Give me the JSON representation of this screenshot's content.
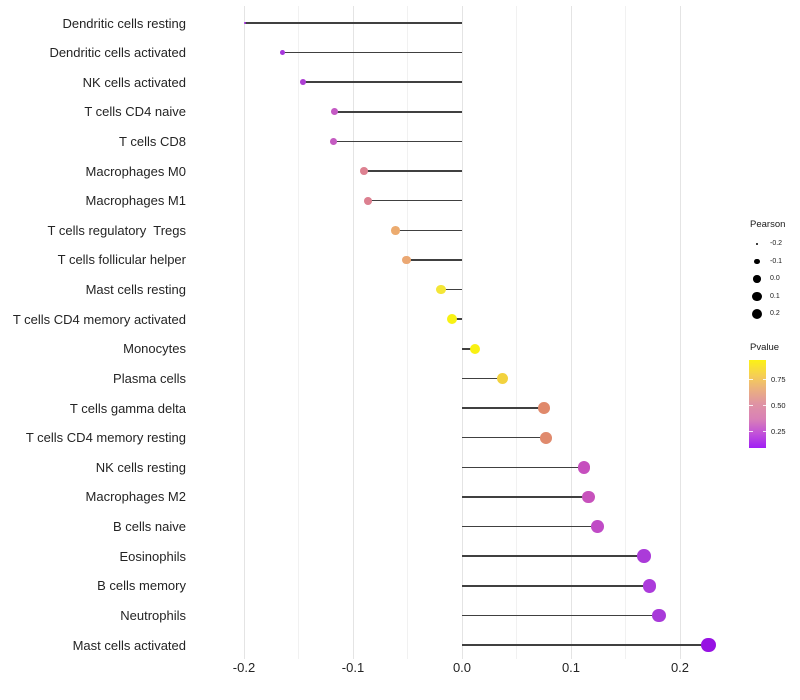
{
  "chart_data": {
    "type": "lollipop",
    "title": "",
    "xlabel": "",
    "ylabel": "",
    "grid": true,
    "background": "#ffffff",
    "line_color": "#404040",
    "x_axis": {
      "range": [
        -0.25,
        0.233
      ],
      "major_ticks": [
        {
          "value": -0.2,
          "label": "-0.2"
        },
        {
          "value": -0.1,
          "label": "-0.1"
        },
        {
          "value": 0.0,
          "label": "0.0"
        },
        {
          "value": 0.1,
          "label": "0.1"
        },
        {
          "value": 0.2,
          "label": "0.2"
        }
      ],
      "minor_ticks": [
        -0.15,
        -0.05,
        0.05,
        0.15
      ]
    },
    "points": [
      {
        "label": "Dendritic cells resting",
        "pearson": -0.199,
        "color": "#A228DE"
      },
      {
        "label": "Dendritic cells activated",
        "pearson": -0.165,
        "color": "#A737DC"
      },
      {
        "label": "NK cells activated",
        "pearson": -0.146,
        "color": "#AD3FD3"
      },
      {
        "label": "T cells CD4 naive",
        "pearson": -0.117,
        "color": "#C45AC4"
      },
      {
        "label": "T cells CD8",
        "pearson": -0.118,
        "color": "#C55CC2"
      },
      {
        "label": "Macrophages M0",
        "pearson": -0.09,
        "color": "#DD8191"
      },
      {
        "label": "Macrophages M1",
        "pearson": -0.086,
        "color": "#DC8090"
      },
      {
        "label": "T cells regulatory  Tregs",
        "pearson": -0.061,
        "color": "#ECAB6F"
      },
      {
        "label": "T cells follicular helper",
        "pearson": -0.051,
        "color": "#EBA873"
      },
      {
        "label": "Mast cells resting",
        "pearson": -0.019,
        "color": "#F4E637"
      },
      {
        "label": "T cells CD4 memory activated",
        "pearson": -0.009,
        "color": "#F8F213"
      },
      {
        "label": "Monocytes",
        "pearson": 0.012,
        "color": "#F9F112"
      },
      {
        "label": "Plasma cells",
        "pearson": 0.037,
        "color": "#F2D23E"
      },
      {
        "label": "T cells gamma delta",
        "pearson": 0.075,
        "color": "#E0896B"
      },
      {
        "label": "T cells CD4 memory resting",
        "pearson": 0.077,
        "color": "#E08A6D"
      },
      {
        "label": "NK cells resting",
        "pearson": 0.112,
        "color": "#C64FBE"
      },
      {
        "label": "Macrophages M2",
        "pearson": 0.116,
        "color": "#C752BC"
      },
      {
        "label": "B cells naive",
        "pearson": 0.124,
        "color": "#C04BC6"
      },
      {
        "label": "Eosinophils",
        "pearson": 0.167,
        "color": "#AB3BD9"
      },
      {
        "label": "B cells memory",
        "pearson": 0.172,
        "color": "#AC3BDB"
      },
      {
        "label": "Neutrophils",
        "pearson": 0.181,
        "color": "#A83AD9"
      },
      {
        "label": "Mast cells activated",
        "pearson": 0.226,
        "color": "#9712E3"
      }
    ],
    "legend_size": {
      "title": "Pearson",
      "dot_color": "#000000",
      "items": [
        {
          "value": -0.2,
          "label": "-0.2"
        },
        {
          "value": -0.1,
          "label": "-0.1"
        },
        {
          "value": 0.0,
          "label": "0.0"
        },
        {
          "value": 0.1,
          "label": "0.1"
        },
        {
          "value": 0.2,
          "label": "0.2"
        }
      ]
    },
    "legend_color": {
      "title": "Pvalue",
      "labels": [
        "0.75",
        "0.50",
        "0.25"
      ],
      "gradient_top_to_bottom": [
        "#FCF115",
        "#F6D052",
        "#EBB17E",
        "#DF93A4",
        "#D981B6",
        "#C253D8",
        "#A01EF5"
      ]
    }
  }
}
